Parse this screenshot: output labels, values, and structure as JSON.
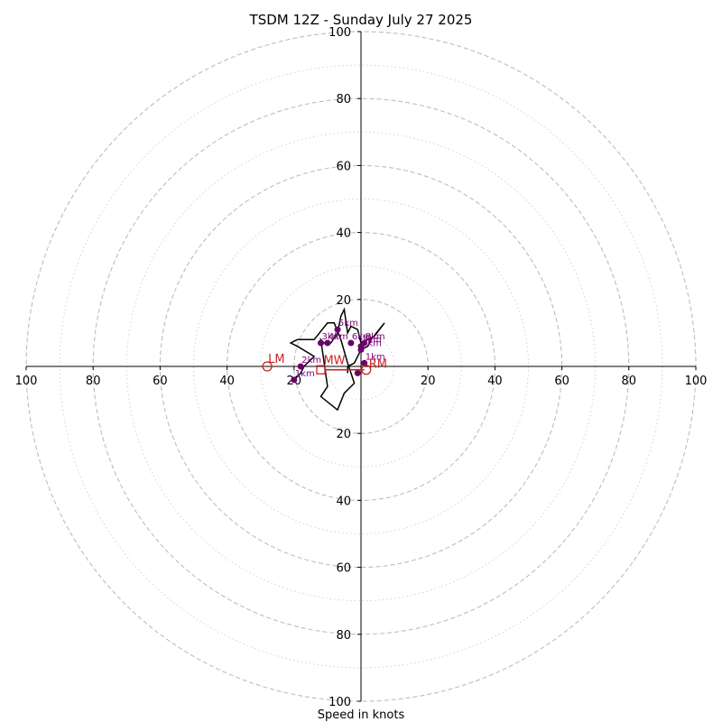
{
  "chart_data": {
    "type": "hodograph",
    "title": "TSDM 12Z - Sunday July 27 2025",
    "xlabel": "Speed in knots",
    "units": "knots",
    "range": [
      -100,
      100
    ],
    "rings_major": [
      20,
      40,
      60,
      80,
      100
    ],
    "rings_minor": [
      10,
      30,
      50,
      70,
      90
    ],
    "x_tick_labels": [
      "100",
      "80",
      "60",
      "40",
      "20",
      "20",
      "40",
      "60",
      "80",
      "100"
    ],
    "x_tick_values": [
      -100,
      -80,
      -60,
      -40,
      -20,
      20,
      40,
      60,
      80,
      100
    ],
    "y_tick_labels": [
      "100",
      "80",
      "60",
      "40",
      "20",
      "20",
      "40",
      "60",
      "80",
      "100"
    ],
    "y_tick_values": [
      100,
      80,
      60,
      40,
      20,
      -20,
      -40,
      -60,
      -80,
      -100
    ],
    "grid": true,
    "hodograph": {
      "u": [
        -20,
        -18,
        -17,
        -14,
        -19,
        -21,
        -19,
        -14,
        -10,
        -8,
        -6,
        -4,
        -3,
        -2,
        -5,
        -7,
        -12,
        -10,
        -12,
        -11,
        -9,
        -7,
        -6,
        -5,
        -4,
        -3,
        -1,
        0,
        4,
        7,
        3,
        2,
        0,
        -1,
        -2,
        -4,
        -4
      ],
      "v": [
        -4,
        -2,
        0,
        3,
        6,
        7,
        8,
        8,
        13,
        13,
        8,
        1,
        -2,
        -5,
        -8,
        -13,
        -9,
        -6,
        8,
        7,
        7,
        10,
        15,
        17,
        10,
        12,
        11,
        7,
        9,
        13,
        8,
        6,
        5,
        3,
        1,
        0,
        -2
      ]
    },
    "height_points": [
      {
        "label": "1km",
        "u": -20,
        "v": -4
      },
      {
        "label": "2km",
        "u": -18,
        "v": 0
      },
      {
        "label": "3km",
        "u": -12,
        "v": 7
      },
      {
        "label": "4km",
        "u": -10,
        "v": 7
      },
      {
        "label": "5km",
        "u": -7,
        "v": 11
      },
      {
        "label": "6km",
        "u": -3,
        "v": 7
      },
      {
        "label": "7km",
        "u": 0,
        "v": 6
      },
      {
        "label": "8km",
        "u": 1,
        "v": 7
      },
      {
        "label": "9km",
        "u": 0,
        "v": 5
      },
      {
        "label": "1km",
        "u": 1,
        "v": 1
      },
      {
        "label": "",
        "u": -1,
        "v": -2
      }
    ],
    "storm_motion": {
      "mean_wind": {
        "label": "MW",
        "u": -12,
        "v": -1
      },
      "left_mover": {
        "label": "LM",
        "u": -28,
        "v": 0
      },
      "right_mover": {
        "label": "RM",
        "u": 1,
        "v": -1
      },
      "color": "#cc2222"
    },
    "colors": {
      "hodograph": "#000000",
      "height_points": "#6a006a",
      "height_labels": "#7a007a",
      "motion": "#cc2222",
      "ring_major": "#bdbdbd",
      "ring_minor": "#d3d3d3"
    }
  }
}
